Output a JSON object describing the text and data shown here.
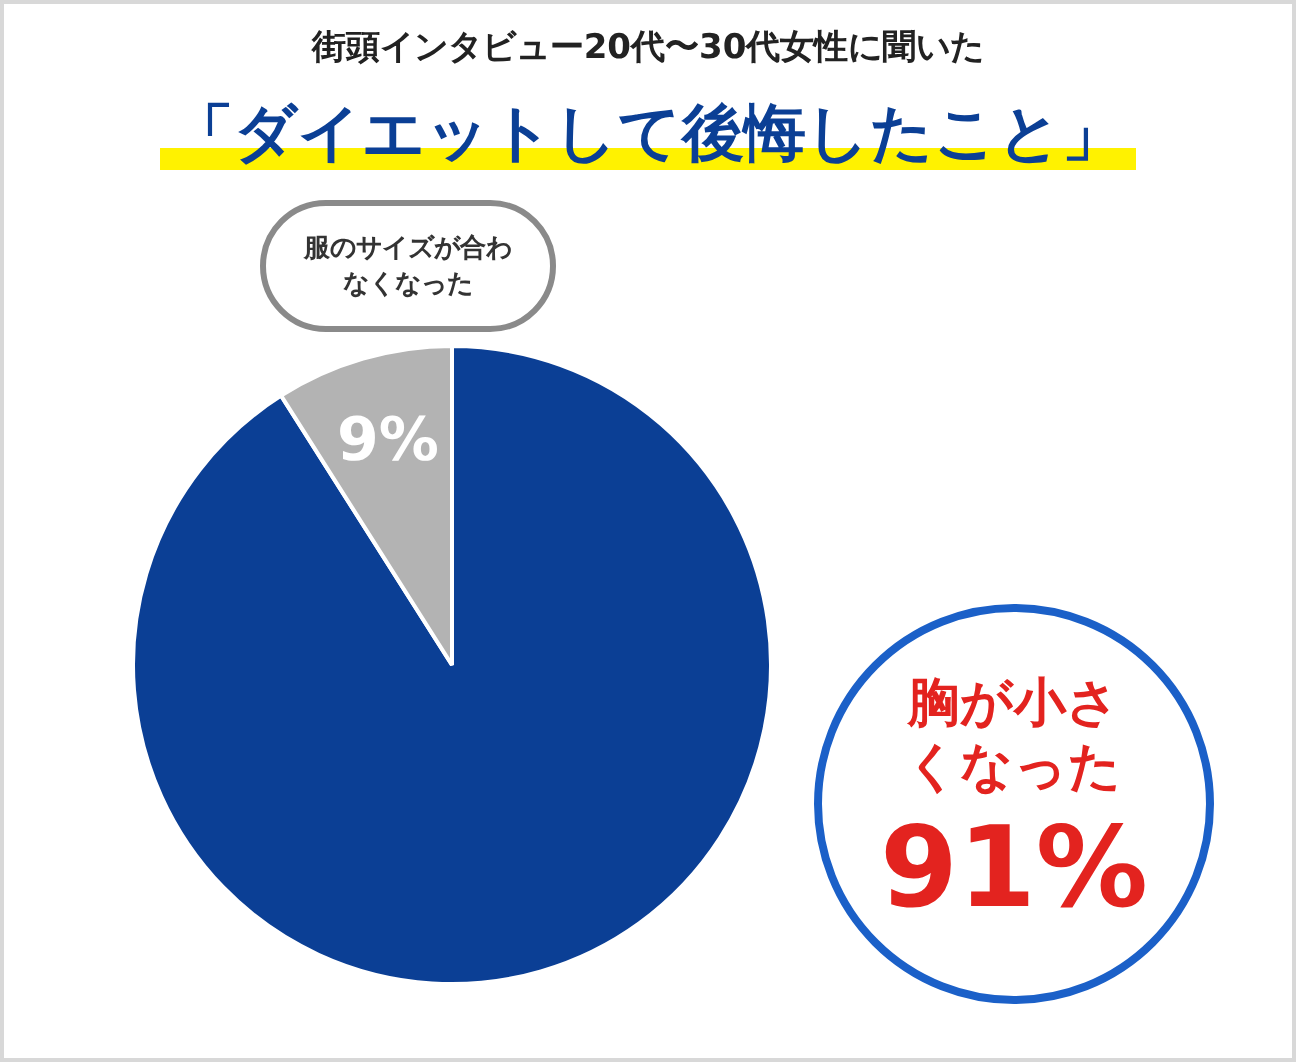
{
  "chart_data": {
    "type": "pie",
    "subtitle": "街頭インタビュー20代〜30代女性に聞いた",
    "title": "「ダイエットして後悔したこと」",
    "categories": [
      "胸が小さくなった",
      "服のサイズが合わなくなった"
    ],
    "values": [
      91,
      9
    ],
    "colors": [
      "#0b3f95",
      "#b3b3b3"
    ],
    "value_labels": [
      "91%",
      "9%"
    ],
    "legend": false
  }
}
